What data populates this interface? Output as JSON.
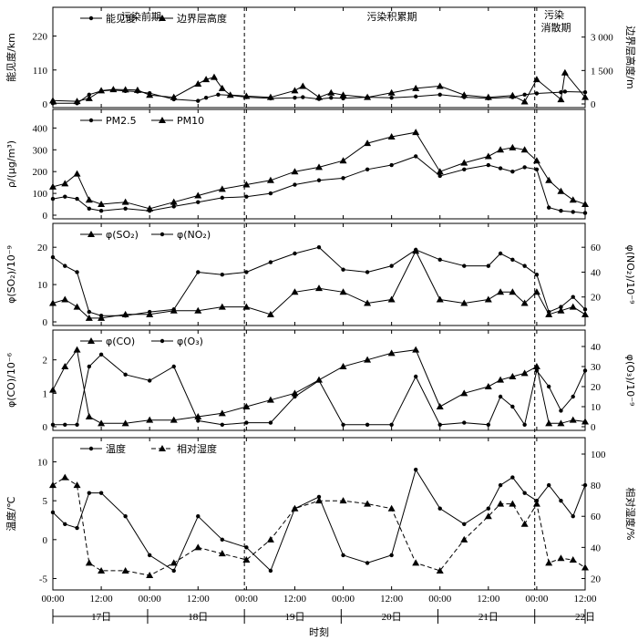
{
  "phases": [
    "污染前期",
    "污染积累期",
    "污染\n消散期"
  ],
  "x_axis": {
    "title": "时刻",
    "tick_labels": [
      "00:00",
      "12:00",
      "00:00",
      "12:00",
      "00:00",
      "12:00",
      "00:00",
      "12:00",
      "00:00",
      "12:00",
      "00:00",
      "12:00"
    ],
    "day_labels": [
      "17日",
      "18日",
      "19日",
      "20日",
      "21日",
      "22日"
    ]
  },
  "chart_data": [
    {
      "type": "line",
      "panel": "visibility-boundary-layer",
      "ylabel": "能见度/km",
      "ylabel_right": "边界层高度/m",
      "yticks": [
        0,
        110,
        220
      ],
      "yticks_right": [
        "0",
        "1 500",
        "3 000"
      ],
      "ylim": [
        0,
        260
      ],
      "ylim_right": [
        0,
        3600
      ],
      "legend": "top-left",
      "series": [
        {
          "name": "能见度",
          "axis": "left",
          "marker": "circle",
          "x": [
            0,
            6,
            9,
            12,
            15,
            18,
            21,
            24,
            30,
            36,
            38,
            41,
            44,
            48,
            54,
            60,
            62,
            66,
            69,
            72,
            78,
            84,
            90,
            96,
            102,
            108,
            114,
            117,
            120,
            126,
            127,
            132
          ],
          "y": [
            2,
            2,
            30,
            42,
            45,
            42,
            40,
            35,
            15,
            10,
            20,
            30,
            28,
            22,
            18,
            20,
            22,
            16,
            20,
            18,
            22,
            20,
            24,
            30,
            22,
            18,
            22,
            30,
            34,
            38,
            40,
            38
          ]
        },
        {
          "name": "边界层高度",
          "axis": "right",
          "marker": "triangle",
          "x": [
            0,
            6,
            9,
            12,
            15,
            18,
            21,
            24,
            30,
            36,
            38,
            40,
            42,
            44,
            48,
            54,
            60,
            62,
            66,
            69,
            72,
            78,
            84,
            90,
            96,
            102,
            108,
            114,
            117,
            120,
            126,
            127,
            132
          ],
          "y": [
            150,
            120,
            250,
            600,
            650,
            640,
            620,
            400,
            300,
            900,
            1100,
            1200,
            700,
            400,
            350,
            300,
            600,
            800,
            300,
            500,
            400,
            300,
            500,
            700,
            800,
            400,
            300,
            380,
            100,
            1100,
            200,
            1400,
            300
          ]
        }
      ]
    },
    {
      "type": "line",
      "panel": "particulate-matter",
      "ylabel": "ρ/(μg/m³)",
      "yticks": [
        0,
        100,
        200,
        300,
        400
      ],
      "ylim": [
        0,
        410
      ],
      "legend": "top-left",
      "series": [
        {
          "name": "PM2.5",
          "marker": "circle",
          "x": [
            0,
            3,
            6,
            9,
            12,
            18,
            24,
            30,
            36,
            42,
            48,
            54,
            60,
            66,
            72,
            78,
            84,
            90,
            96,
            102,
            108,
            111,
            114,
            117,
            120,
            123,
            126,
            129,
            132
          ],
          "y": [
            75,
            85,
            75,
            30,
            20,
            30,
            20,
            40,
            60,
            80,
            85,
            100,
            140,
            160,
            170,
            210,
            230,
            270,
            180,
            210,
            230,
            215,
            200,
            220,
            210,
            35,
            20,
            15,
            10
          ]
        },
        {
          "name": "PM10",
          "marker": "triangle",
          "x": [
            0,
            3,
            6,
            9,
            12,
            18,
            24,
            30,
            36,
            42,
            48,
            54,
            60,
            66,
            72,
            78,
            84,
            90,
            96,
            102,
            108,
            111,
            114,
            117,
            120,
            123,
            126,
            129,
            132
          ],
          "y": [
            130,
            145,
            190,
            70,
            50,
            60,
            30,
            60,
            90,
            120,
            140,
            160,
            200,
            220,
            250,
            330,
            360,
            380,
            200,
            240,
            270,
            300,
            310,
            300,
            250,
            160,
            110,
            70,
            50
          ]
        }
      ]
    },
    {
      "type": "line",
      "panel": "so2-no2",
      "ylabel": "φ(SO₂)/10⁻⁹",
      "ylabel_right": "φ(NO₂)/10⁻⁹",
      "yticks": [
        0,
        10,
        20
      ],
      "yticks_right": [
        20,
        40,
        60
      ],
      "ylim": [
        0,
        22
      ],
      "ylim_right": [
        0,
        66
      ],
      "legend": "top-left",
      "series": [
        {
          "name": "φ(SO₂)",
          "axis": "left",
          "marker": "triangle",
          "x": [
            0,
            3,
            6,
            9,
            12,
            18,
            24,
            30,
            36,
            42,
            48,
            54,
            60,
            66,
            72,
            78,
            84,
            90,
            96,
            102,
            108,
            111,
            114,
            117,
            120,
            123,
            126,
            129,
            132
          ],
          "y": [
            5,
            6,
            4,
            1,
            1,
            2,
            2,
            3,
            3,
            4,
            4,
            2,
            8,
            9,
            8,
            5,
            6,
            19,
            6,
            5,
            6,
            8,
            8,
            5,
            8,
            2,
            3,
            4,
            2
          ]
        },
        {
          "name": "φ(NO₂)",
          "axis": "right",
          "marker": "circle",
          "x": [
            0,
            3,
            6,
            9,
            12,
            18,
            24,
            30,
            36,
            42,
            48,
            54,
            60,
            66,
            72,
            78,
            84,
            90,
            96,
            102,
            108,
            111,
            114,
            117,
            120,
            123,
            126,
            129,
            132
          ],
          "y": [
            52,
            45,
            40,
            8,
            5,
            5,
            8,
            10,
            40,
            38,
            40,
            48,
            55,
            60,
            42,
            40,
            45,
            58,
            50,
            45,
            45,
            55,
            50,
            45,
            38,
            8,
            12,
            20,
            10
          ]
        }
      ]
    },
    {
      "type": "line",
      "panel": "co-o3",
      "ylabel": "φ(CO)/10⁻⁶",
      "ylabel_right": "φ(O₃)/10⁻⁹",
      "yticks": [
        0,
        1,
        2
      ],
      "yticks_right": [
        0,
        10,
        20,
        30,
        40
      ],
      "ylim": [
        0,
        2.4
      ],
      "ylim_right": [
        0,
        40
      ],
      "legend": "top-left",
      "series": [
        {
          "name": "φ(CO)",
          "axis": "left",
          "marker": "triangle",
          "x": [
            0,
            3,
            6,
            9,
            12,
            18,
            24,
            30,
            36,
            42,
            48,
            54,
            60,
            66,
            72,
            78,
            84,
            90,
            96,
            102,
            108,
            111,
            114,
            117,
            120,
            123,
            126,
            129,
            132
          ],
          "y": [
            1.1,
            1.8,
            2.3,
            0.3,
            0.1,
            0.1,
            0.2,
            0.2,
            0.3,
            0.4,
            0.6,
            0.8,
            1.0,
            1.4,
            1.8,
            2.0,
            2.2,
            2.3,
            0.6,
            1.0,
            1.2,
            1.4,
            1.5,
            1.6,
            1.8,
            0.1,
            0.1,
            0.2,
            0.15
          ]
        },
        {
          "name": "φ(O₃)",
          "axis": "right",
          "marker": "circle",
          "x": [
            0,
            3,
            6,
            9,
            12,
            18,
            24,
            30,
            36,
            42,
            48,
            54,
            60,
            66,
            72,
            78,
            84,
            90,
            96,
            102,
            108,
            111,
            114,
            117,
            120,
            123,
            126,
            129,
            132
          ],
          "y": [
            1,
            1,
            1,
            30,
            36,
            26,
            23,
            30,
            3,
            1,
            2,
            2,
            15,
            23,
            1,
            1,
            1,
            25,
            1,
            2,
            1,
            15,
            10,
            1,
            28,
            20,
            8,
            15,
            28
          ]
        }
      ]
    },
    {
      "type": "line",
      "panel": "temperature-humidity",
      "ylabel": "温度/℃",
      "ylabel_right": "相对湿度/%",
      "yticks": [
        -5,
        0,
        5,
        10
      ],
      "yticks_right": [
        20,
        40,
        60,
        80,
        100
      ],
      "ylim": [
        -6,
        11
      ],
      "ylim_right": [
        15,
        100
      ],
      "legend": "top-left",
      "series": [
        {
          "name": "温度",
          "axis": "left",
          "marker": "circle",
          "dash": "solid",
          "x": [
            0,
            3,
            6,
            9,
            12,
            18,
            24,
            30,
            36,
            42,
            48,
            54,
            60,
            66,
            72,
            78,
            84,
            90,
            96,
            102,
            108,
            111,
            114,
            117,
            120,
            123,
            126,
            129,
            132
          ],
          "y": [
            3.5,
            2,
            1.5,
            6,
            6,
            3,
            -2,
            -4,
            3,
            0,
            -1,
            -4,
            4,
            5.5,
            -2,
            -3,
            -2,
            9,
            4,
            2,
            4,
            7,
            8,
            6,
            5,
            7,
            5,
            3,
            7
          ]
        },
        {
          "name": "相对湿度",
          "axis": "right",
          "marker": "triangle",
          "dash": "dash",
          "x": [
            0,
            3,
            6,
            9,
            12,
            18,
            24,
            30,
            36,
            42,
            48,
            54,
            60,
            66,
            72,
            78,
            84,
            90,
            96,
            102,
            108,
            111,
            114,
            117,
            120,
            123,
            126,
            129,
            132
          ],
          "y": [
            80,
            85,
            80,
            30,
            25,
            25,
            22,
            30,
            40,
            36,
            32,
            45,
            65,
            70,
            70,
            68,
            65,
            30,
            25,
            45,
            60,
            68,
            68,
            55,
            68,
            30,
            33,
            32,
            27
          ]
        }
      ]
    }
  ]
}
